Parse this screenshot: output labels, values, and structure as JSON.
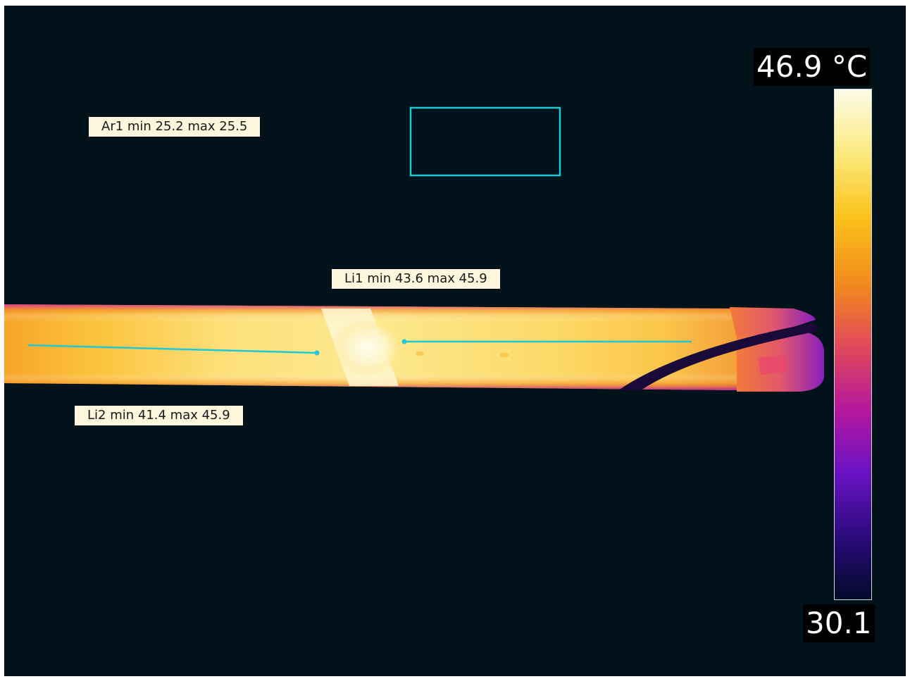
{
  "scale": {
    "max_label": "46.9 °C",
    "min_label": "30.1",
    "palette": [
      "#fdfbe9",
      "#fbe97a",
      "#fbc21b",
      "#f28b1c",
      "#e24b58",
      "#b5179e",
      "#6a13c4",
      "#2a0a7a",
      "#030a2a"
    ]
  },
  "measurements": {
    "area1": "Ar1 min 25.2 max 25.5",
    "line1": "Li1 min 43.6 max 45.9",
    "line2": "Li2 min 41.4 max 45.9"
  },
  "colors": {
    "background": "#02121a",
    "marker": "#1ec8d6"
  }
}
